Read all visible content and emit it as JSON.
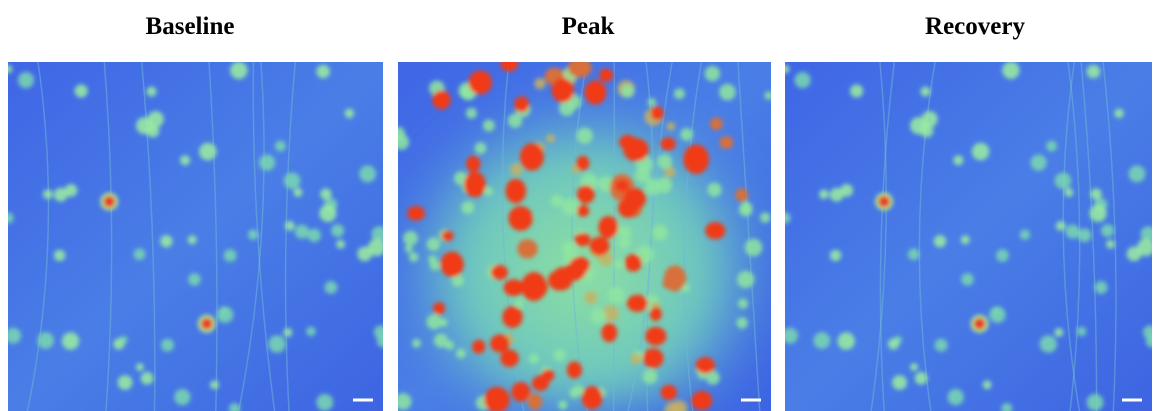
{
  "panels": [
    {
      "title": "Baseline"
    },
    {
      "title": "Peak"
    },
    {
      "title": "Recovery"
    }
  ]
}
